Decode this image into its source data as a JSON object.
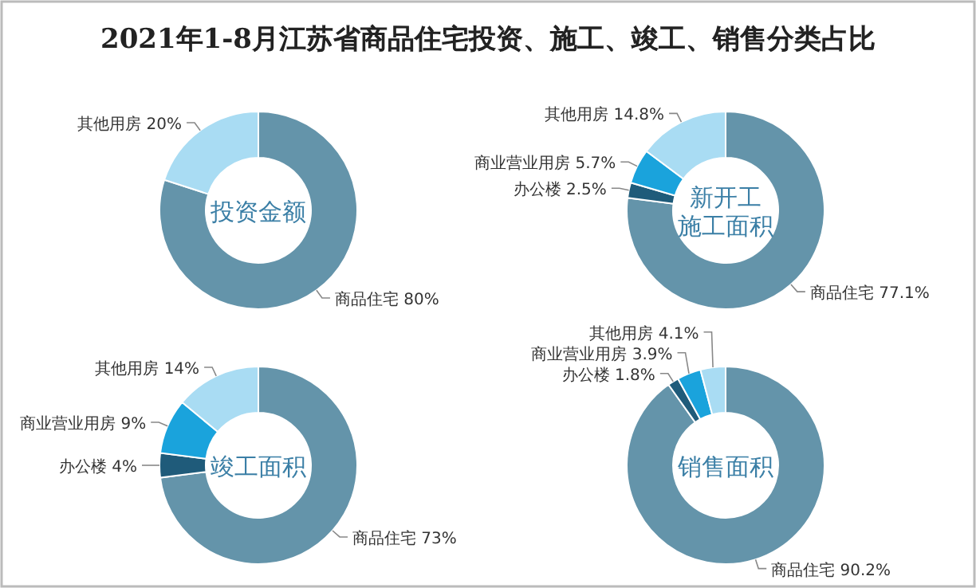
{
  "chart_data": [
    {
      "type": "other",
      "title": "2021年1-8月江苏省商品住宅投资、施工、竣工、销售分类占比"
    },
    {
      "type": "donut",
      "title": "投资金额",
      "categories": [
        "商品住宅",
        "其他用房"
      ],
      "values": [
        80,
        20
      ],
      "value_labels": [
        "80%",
        "20%"
      ],
      "colors": [
        "#6494aa",
        "#a9dcf3"
      ]
    },
    {
      "type": "donut",
      "title": "新开工施工面积",
      "categories": [
        "商品住宅",
        "办公楼",
        "商业营业用房",
        "其他用房"
      ],
      "values": [
        77.1,
        2.5,
        5.7,
        14.8
      ],
      "value_labels": [
        "77.1%",
        "2.5%",
        "5.7%",
        "14.8%"
      ],
      "colors": [
        "#6494aa",
        "#1f5b7a",
        "#1aa3dc",
        "#a9dcf3"
      ]
    },
    {
      "type": "donut",
      "title": "竣工面积",
      "categories": [
        "商品住宅",
        "办公楼",
        "商业营业用房",
        "其他用房"
      ],
      "values": [
        73,
        4,
        9,
        14
      ],
      "value_labels": [
        "73%",
        "4%",
        "9%",
        "14%"
      ],
      "colors": [
        "#6494aa",
        "#1f5b7a",
        "#1aa3dc",
        "#a9dcf3"
      ]
    },
    {
      "type": "donut",
      "title": "销售面积",
      "categories": [
        "商品住宅",
        "办公楼",
        "商业营业用房",
        "其他用房"
      ],
      "values": [
        90.2,
        1.8,
        3.9,
        4.1
      ],
      "value_labels": [
        "90.2%",
        "1.8%",
        "3.9%",
        "4.1%"
      ],
      "colors": [
        "#6494aa",
        "#1f5b7a",
        "#1aa3dc",
        "#a9dcf3"
      ]
    }
  ]
}
